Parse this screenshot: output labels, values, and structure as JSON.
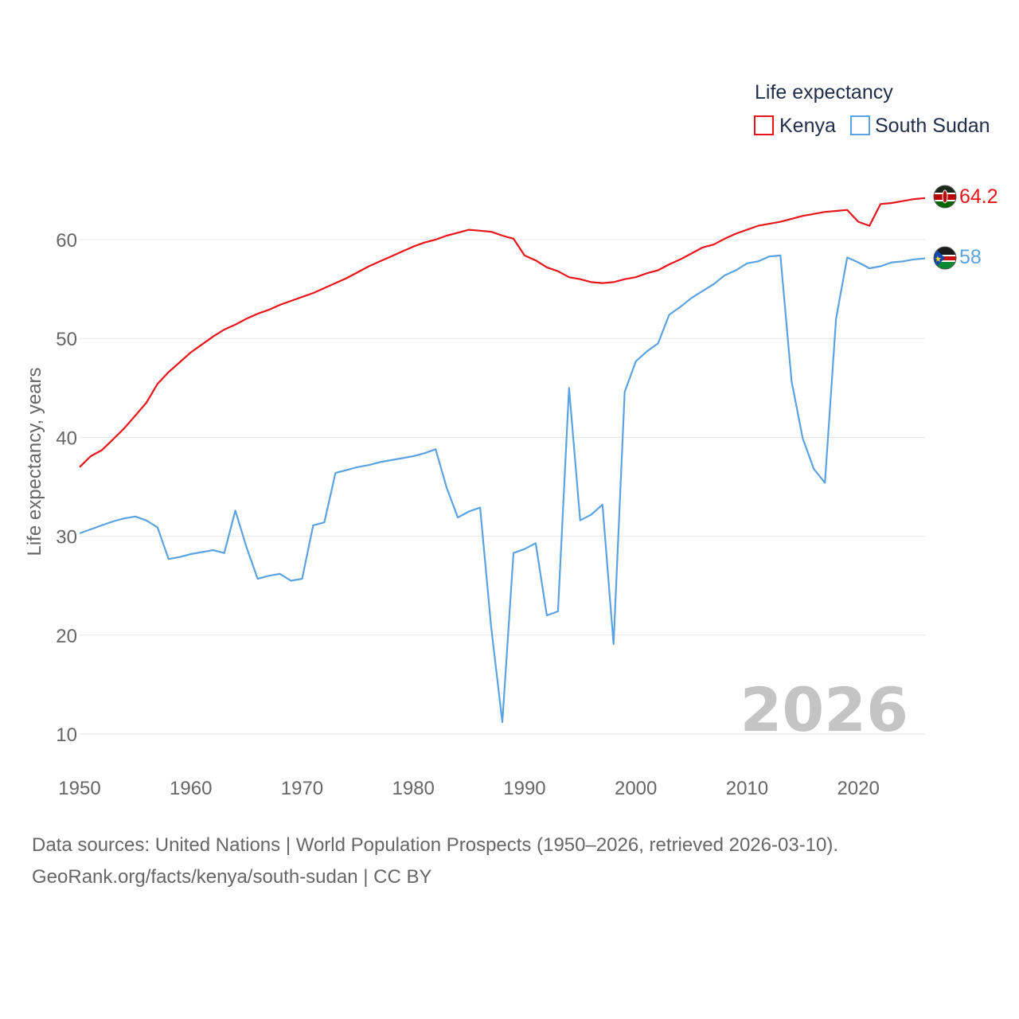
{
  "chart_data": {
    "type": "line",
    "title": "Life expectancy",
    "ylabel": "Life expectancy, years",
    "xlabel": "",
    "xlim": [
      1950,
      2026
    ],
    "ylim": [
      10,
      60
    ],
    "x_ticks": [
      1950,
      1960,
      1970,
      1980,
      1990,
      2000,
      2010,
      2020
    ],
    "y_ticks": [
      10,
      20,
      30,
      40,
      50,
      60
    ],
    "grid": true,
    "legend_position": "top-right",
    "current_year": "2026",
    "series": [
      {
        "name": "Kenya",
        "color": "#e8141a",
        "end_label": "64.2",
        "flag_icon": "kenya-flag-icon",
        "x": [
          1950,
          1951,
          1952,
          1953,
          1954,
          1955,
          1956,
          1957,
          1958,
          1959,
          1960,
          1961,
          1962,
          1963,
          1964,
          1965,
          1966,
          1967,
          1968,
          1969,
          1970,
          1971,
          1972,
          1973,
          1974,
          1975,
          1976,
          1977,
          1978,
          1979,
          1980,
          1981,
          1982,
          1983,
          1984,
          1985,
          1986,
          1987,
          1988,
          1989,
          1990,
          1991,
          1992,
          1993,
          1994,
          1995,
          1996,
          1997,
          1998,
          1999,
          2000,
          2001,
          2002,
          2003,
          2004,
          2005,
          2006,
          2007,
          2008,
          2009,
          2010,
          2011,
          2012,
          2013,
          2014,
          2015,
          2016,
          2017,
          2018,
          2019,
          2020,
          2021,
          2022,
          2023,
          2024,
          2025,
          2026
        ],
        "values": [
          37.0,
          38.1,
          38.7,
          39.8,
          40.9,
          42.2,
          43.5,
          45.4,
          46.6,
          47.6,
          48.6,
          49.4,
          50.2,
          50.9,
          51.4,
          52.0,
          52.5,
          52.9,
          53.4,
          53.8,
          54.2,
          54.6,
          55.1,
          55.6,
          56.1,
          56.7,
          57.3,
          57.8,
          58.3,
          58.8,
          59.3,
          59.7,
          60.0,
          60.4,
          60.7,
          61.0,
          60.9,
          60.8,
          60.4,
          60.1,
          58.4,
          57.9,
          57.2,
          56.8,
          56.2,
          56.0,
          55.7,
          55.6,
          55.7,
          56.0,
          56.2,
          56.6,
          56.9,
          57.5,
          58.0,
          58.6,
          59.2,
          59.5,
          60.1,
          60.6,
          61.0,
          61.4,
          61.6,
          61.8,
          62.1,
          62.4,
          62.6,
          62.8,
          62.9,
          63.0,
          61.8,
          61.4,
          63.6,
          63.7,
          63.9,
          64.1,
          64.2
        ]
      },
      {
        "name": "South Sudan",
        "color": "#5ba3e0",
        "end_label": "58",
        "flag_icon": "south-sudan-flag-icon",
        "x": [
          1950,
          1951,
          1952,
          1953,
          1954,
          1955,
          1956,
          1957,
          1958,
          1959,
          1960,
          1961,
          1962,
          1963,
          1964,
          1965,
          1966,
          1967,
          1968,
          1969,
          1970,
          1971,
          1972,
          1973,
          1974,
          1975,
          1976,
          1977,
          1978,
          1979,
          1980,
          1981,
          1982,
          1983,
          1984,
          1985,
          1986,
          1987,
          1988,
          1989,
          1990,
          1991,
          1992,
          1993,
          1994,
          1995,
          1996,
          1997,
          1998,
          1999,
          2000,
          2001,
          2002,
          2003,
          2004,
          2005,
          2006,
          2007,
          2008,
          2009,
          2010,
          2011,
          2012,
          2013,
          2014,
          2015,
          2016,
          2017,
          2018,
          2019,
          2020,
          2021,
          2022,
          2023,
          2024,
          2025,
          2026
        ],
        "values": [
          30.3,
          30.7,
          31.1,
          31.5,
          31.8,
          32.0,
          31.6,
          30.9,
          27.7,
          27.9,
          28.2,
          28.4,
          28.6,
          28.3,
          32.6,
          28.9,
          25.7,
          26.0,
          26.2,
          25.5,
          25.7,
          31.1,
          31.4,
          36.4,
          36.7,
          37.0,
          37.2,
          37.5,
          37.7,
          37.9,
          38.1,
          38.4,
          38.8,
          34.9,
          31.9,
          32.5,
          32.9,
          20.8,
          11.2,
          28.3,
          28.7,
          29.3,
          22.0,
          22.4,
          45.0,
          31.6,
          32.2,
          33.2,
          19.1,
          44.6,
          47.7,
          48.7,
          49.5,
          52.4,
          53.2,
          54.1,
          54.8,
          55.5,
          56.4,
          56.9,
          57.6,
          57.8,
          58.3,
          58.4,
          45.7,
          39.9,
          36.8,
          35.4,
          52.0,
          58.2,
          57.7,
          57.1,
          57.3,
          57.7,
          57.8,
          58.0,
          58.1
        ]
      }
    ]
  },
  "source": {
    "line1": "Data sources: United Nations | World Population Prospects (1950–2026, retrieved 2026-03-10).",
    "line2": "GeoRank.org/facts/kenya/south-sudan | CC BY"
  }
}
